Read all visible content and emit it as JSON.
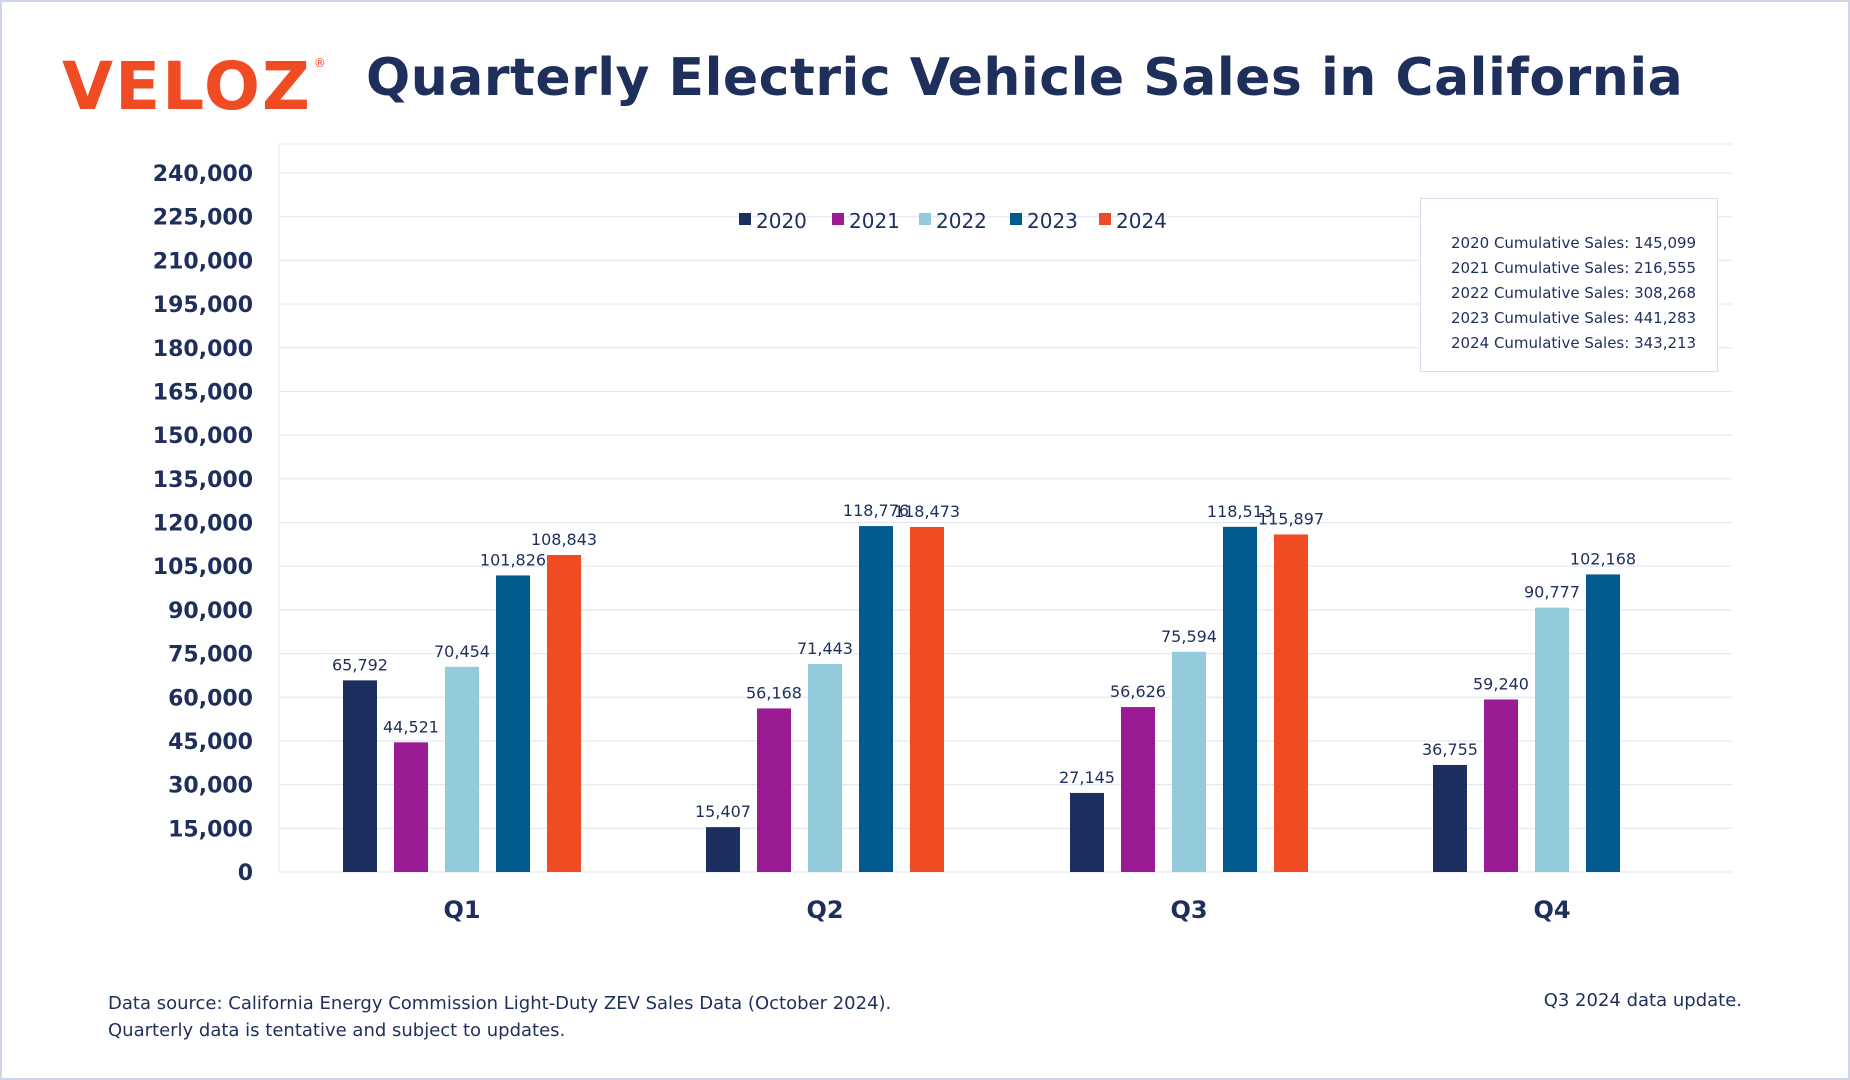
{
  "logo": {
    "text": "VELOZ",
    "mark": "®"
  },
  "title": "Quarterly Electric Vehicle Sales in California",
  "colors": {
    "2020": "#1c2f5e",
    "2021": "#9a1b93",
    "2022": "#93cadc",
    "2023": "#035a8f",
    "2024": "#f04b23",
    "text": "#1e2f5c",
    "grid": "#e3e7f2"
  },
  "chart_data": {
    "type": "bar",
    "categories": [
      "Q1",
      "Q2",
      "Q3",
      "Q4"
    ],
    "series": [
      {
        "name": "2020",
        "values": [
          65792,
          15407,
          27145,
          36755
        ],
        "labels": [
          "65,792",
          "15,407",
          "27,145",
          "36,755"
        ]
      },
      {
        "name": "2021",
        "values": [
          44521,
          56168,
          56626,
          59240
        ],
        "labels": [
          "44,521",
          "56,168",
          "56,626",
          "59,240"
        ]
      },
      {
        "name": "2022",
        "values": [
          70454,
          71443,
          75594,
          90777
        ],
        "labels": [
          "70,454",
          "71,443",
          "75,594",
          "90,777"
        ]
      },
      {
        "name": "2023",
        "values": [
          101826,
          118776,
          118513,
          102168
        ],
        "labels": [
          "101,826",
          "118,776",
          "118,513",
          "102,168"
        ]
      },
      {
        "name": "2024",
        "values": [
          108843,
          118473,
          115897,
          null
        ],
        "labels": [
          "108,843",
          "118,473",
          "115,897",
          ""
        ]
      }
    ],
    "ylim": [
      0,
      240000
    ],
    "yticks": [
      0,
      15000,
      30000,
      45000,
      60000,
      75000,
      90000,
      105000,
      120000,
      135000,
      150000,
      165000,
      180000,
      195000,
      210000,
      225000,
      240000
    ],
    "ytick_labels": [
      "0",
      "15,000",
      "30,000",
      "45,000",
      "60,000",
      "75,000",
      "90,000",
      "105,000",
      "120,000",
      "135,000",
      "150,000",
      "165,000",
      "180,000",
      "195,000",
      "210,000",
      "225,000",
      "240,000"
    ],
    "grid": true,
    "legend_position": "top-center"
  },
  "cumulative": [
    "2020 Cumulative Sales: 145,099",
    "2021 Cumulative Sales: 216,555",
    "2022 Cumulative Sales: 308,268",
    "2023 Cumulative Sales: 441,283",
    "2024 Cumulative Sales: 343,213"
  ],
  "footnote": {
    "line1": "Data source: California Energy Commission Light-Duty ZEV Sales Data (October 2024).",
    "line2": "Quarterly data is tentative and subject to updates."
  },
  "update_note": "Q3 2024 data update."
}
